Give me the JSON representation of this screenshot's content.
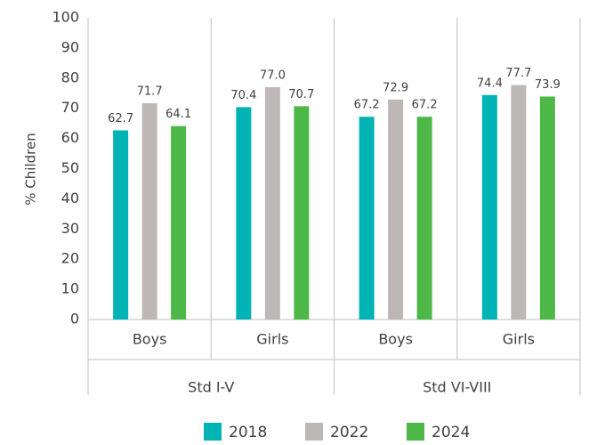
{
  "chart_data": {
    "type": "bar",
    "y_label": "% Children",
    "categories": [
      "Boys",
      "Girls",
      "Boys",
      "Girls"
    ],
    "category_groups": [
      "Std I-V",
      "Std VI-VIII"
    ],
    "series": [
      {
        "name": "2018",
        "color": "#00b4b6",
        "values": [
          62.7,
          70.4,
          67.2,
          74.4
        ],
        "value_labels": [
          "62.7",
          "70.4",
          "67.2",
          "74.4"
        ]
      },
      {
        "name": "2022",
        "color": "#bdb8b5",
        "values": [
          71.7,
          77.0,
          72.9,
          77.7
        ],
        "value_labels": [
          "71.7",
          "77.0",
          "72.9",
          "77.7"
        ]
      },
      {
        "name": "2024",
        "color": "#4db848",
        "values": [
          64.1,
          70.7,
          67.2,
          73.9
        ],
        "value_labels": [
          "64.1",
          "70.7",
          "67.2",
          "73.9"
        ]
      }
    ],
    "ylim": [
      0,
      100
    ],
    "yticks": [
      0,
      10,
      20,
      30,
      40,
      50,
      60,
      70,
      80,
      90,
      100
    ],
    "legend": "bottom"
  }
}
